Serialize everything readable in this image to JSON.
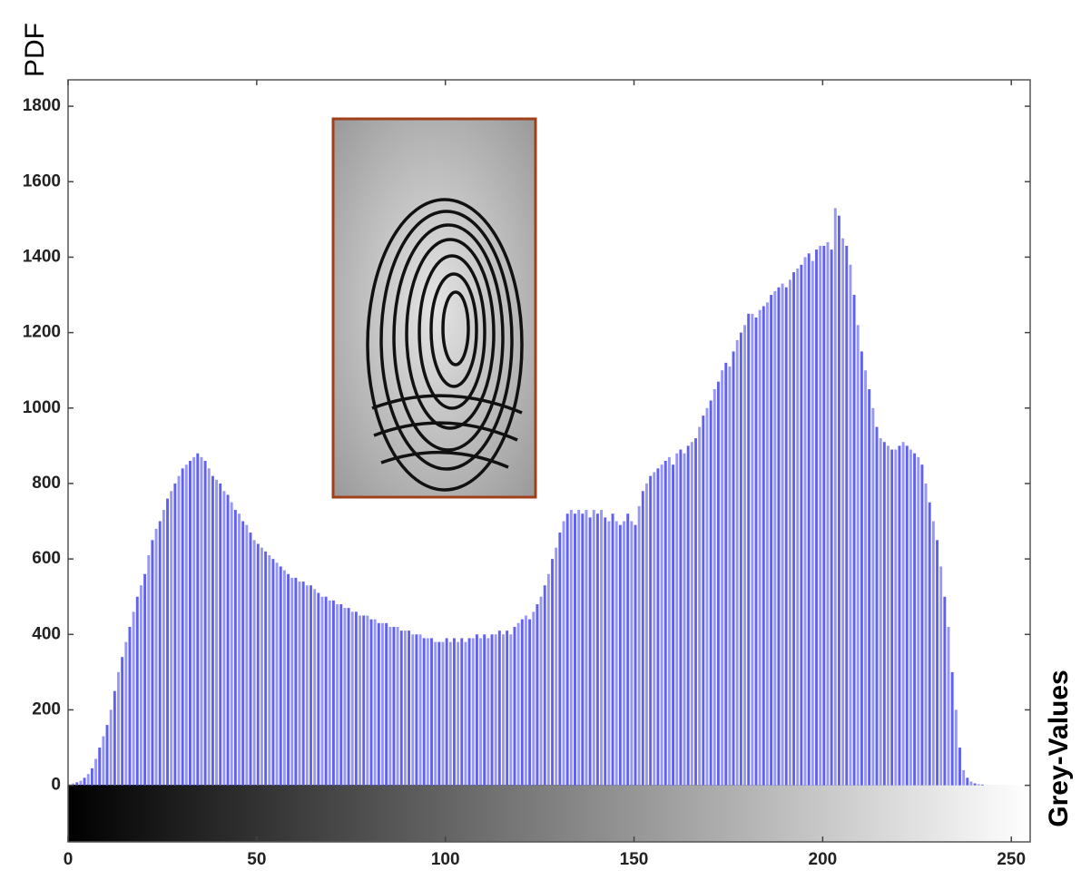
{
  "chart_data": {
    "type": "bar",
    "xlabel": "Grey-Values",
    "ylabel": "PDF",
    "x": [
      0,
      1,
      2,
      3,
      4,
      5,
      6,
      7,
      8,
      9,
      10,
      11,
      12,
      13,
      14,
      15,
      16,
      17,
      18,
      19,
      20,
      21,
      22,
      23,
      24,
      25,
      26,
      27,
      28,
      29,
      30,
      31,
      32,
      33,
      34,
      35,
      36,
      37,
      38,
      39,
      40,
      41,
      42,
      43,
      44,
      45,
      46,
      47,
      48,
      49,
      50,
      51,
      52,
      53,
      54,
      55,
      56,
      57,
      58,
      59,
      60,
      61,
      62,
      63,
      64,
      65,
      66,
      67,
      68,
      69,
      70,
      71,
      72,
      73,
      74,
      75,
      76,
      77,
      78,
      79,
      80,
      81,
      82,
      83,
      84,
      85,
      86,
      87,
      88,
      89,
      90,
      91,
      92,
      93,
      94,
      95,
      96,
      97,
      98,
      99,
      100,
      101,
      102,
      103,
      104,
      105,
      106,
      107,
      108,
      109,
      110,
      111,
      112,
      113,
      114,
      115,
      116,
      117,
      118,
      119,
      120,
      121,
      122,
      123,
      124,
      125,
      126,
      127,
      128,
      129,
      130,
      131,
      132,
      133,
      134,
      135,
      136,
      137,
      138,
      139,
      140,
      141,
      142,
      143,
      144,
      145,
      146,
      147,
      148,
      149,
      150,
      151,
      152,
      153,
      154,
      155,
      156,
      157,
      158,
      159,
      160,
      161,
      162,
      163,
      164,
      165,
      166,
      167,
      168,
      169,
      170,
      171,
      172,
      173,
      174,
      175,
      176,
      177,
      178,
      179,
      180,
      181,
      182,
      183,
      184,
      185,
      186,
      187,
      188,
      189,
      190,
      191,
      192,
      193,
      194,
      195,
      196,
      197,
      198,
      199,
      200,
      201,
      202,
      203,
      204,
      205,
      206,
      207,
      208,
      209,
      210,
      211,
      212,
      213,
      214,
      215,
      216,
      217,
      218,
      219,
      220,
      221,
      222,
      223,
      224,
      225,
      226,
      227,
      228,
      229,
      230,
      231,
      232,
      233,
      234,
      235,
      236,
      237,
      238,
      239,
      240,
      241,
      242,
      243,
      244,
      245,
      246,
      247,
      248,
      249,
      250,
      251,
      252,
      253,
      254,
      255
    ],
    "values": [
      2,
      5,
      8,
      12,
      20,
      30,
      45,
      70,
      100,
      130,
      160,
      200,
      250,
      300,
      340,
      380,
      420,
      460,
      500,
      530,
      560,
      610,
      650,
      680,
      700,
      730,
      760,
      780,
      800,
      820,
      840,
      850,
      860,
      870,
      880,
      870,
      860,
      840,
      820,
      810,
      800,
      780,
      770,
      750,
      730,
      720,
      700,
      690,
      670,
      650,
      640,
      630,
      620,
      610,
      600,
      590,
      580,
      570,
      560,
      550,
      550,
      540,
      540,
      530,
      530,
      520,
      510,
      500,
      500,
      490,
      490,
      480,
      480,
      470,
      470,
      460,
      460,
      450,
      450,
      450,
      440,
      440,
      430,
      430,
      430,
      420,
      420,
      420,
      410,
      410,
      410,
      400,
      400,
      400,
      390,
      390,
      390,
      380,
      380,
      380,
      390,
      380,
      390,
      380,
      390,
      380,
      390,
      390,
      400,
      390,
      400,
      390,
      400,
      400,
      410,
      400,
      410,
      400,
      420,
      430,
      440,
      450,
      440,
      460,
      480,
      500,
      530,
      560,
      600,
      630,
      670,
      700,
      720,
      730,
      720,
      730,
      720,
      730,
      710,
      730,
      720,
      730,
      710,
      700,
      720,
      700,
      690,
      700,
      720,
      700,
      690,
      740,
      780,
      800,
      820,
      830,
      840,
      850,
      860,
      870,
      850,
      880,
      890,
      880,
      900,
      910,
      920,
      950,
      980,
      1000,
      1020,
      1050,
      1070,
      1100,
      1120,
      1110,
      1150,
      1180,
      1200,
      1220,
      1250,
      1250,
      1240,
      1260,
      1270,
      1280,
      1300,
      1310,
      1320,
      1330,
      1320,
      1340,
      1360,
      1370,
      1380,
      1400,
      1410,
      1390,
      1420,
      1430,
      1430,
      1440,
      1420,
      1530,
      1510,
      1450,
      1430,
      1380,
      1300,
      1220,
      1150,
      1100,
      1050,
      1000,
      950,
      920,
      910,
      900,
      890,
      890,
      900,
      910,
      900,
      890,
      880,
      870,
      850,
      800,
      750,
      700,
      650,
      580,
      500,
      420,
      300,
      200,
      100,
      40,
      20,
      10,
      5,
      3,
      2,
      0,
      0,
      0,
      0,
      0,
      0,
      0,
      0,
      0,
      0,
      0,
      0,
      0
    ],
    "color": "#6060f0",
    "xlim": [
      0,
      255
    ],
    "xticks": [
      0,
      50,
      100,
      150,
      200,
      250
    ],
    "ylim": [
      -150,
      1870
    ],
    "yticks": [
      0,
      200,
      400,
      600,
      800,
      1000,
      1200,
      1400,
      1600,
      1800
    ]
  }
}
